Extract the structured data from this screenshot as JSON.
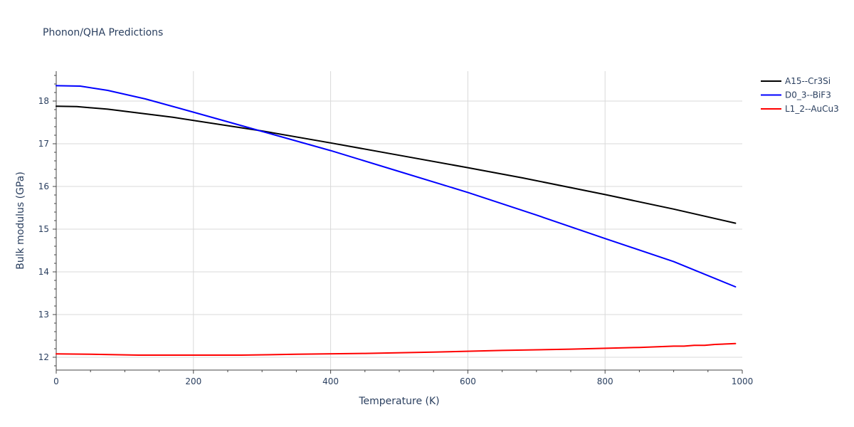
{
  "chart_data": {
    "type": "line",
    "title": "Phonon/QHA Predictions",
    "xlabel": "Temperature (K)",
    "ylabel": "Bulk modulus (GPa)",
    "xlim": [
      0,
      1000
    ],
    "ylim": [
      11.7,
      18.7
    ],
    "xticks": [
      0,
      200,
      400,
      600,
      800,
      1000
    ],
    "yticks": [
      12,
      13,
      14,
      15,
      16,
      17,
      18
    ],
    "xminor_step": 50,
    "yminor_step": 0.2,
    "grid": true,
    "legend_position": "top-right-outside",
    "series": [
      {
        "name": "A15--Cr3Si",
        "color": "#000000",
        "x": [
          0,
          30,
          75,
          170,
          300,
          400,
          500,
          600,
          680,
          800,
          900,
          990
        ],
        "y": [
          17.88,
          17.87,
          17.81,
          17.62,
          17.3,
          17.02,
          16.73,
          16.44,
          16.2,
          15.81,
          15.47,
          15.14
        ]
      },
      {
        "name": "D0_3--BiF3",
        "color": "#0000ff",
        "x": [
          0,
          35,
          75,
          130,
          200,
          300,
          400,
          500,
          600,
          700,
          800,
          900,
          990
        ],
        "y": [
          18.36,
          18.35,
          18.25,
          18.05,
          17.74,
          17.29,
          16.84,
          16.35,
          15.86,
          15.33,
          14.78,
          14.24,
          13.65
        ]
      },
      {
        "name": "L1_2--AuCu3",
        "color": "#ff0000",
        "x": [
          0,
          50,
          120,
          200,
          270,
          350,
          450,
          550,
          650,
          750,
          850,
          900,
          915,
          930,
          945,
          960,
          990
        ],
        "y": [
          12.08,
          12.07,
          12.05,
          12.05,
          12.05,
          12.07,
          12.09,
          12.12,
          12.16,
          12.19,
          12.23,
          12.26,
          12.26,
          12.28,
          12.28,
          12.3,
          12.32
        ]
      }
    ]
  }
}
